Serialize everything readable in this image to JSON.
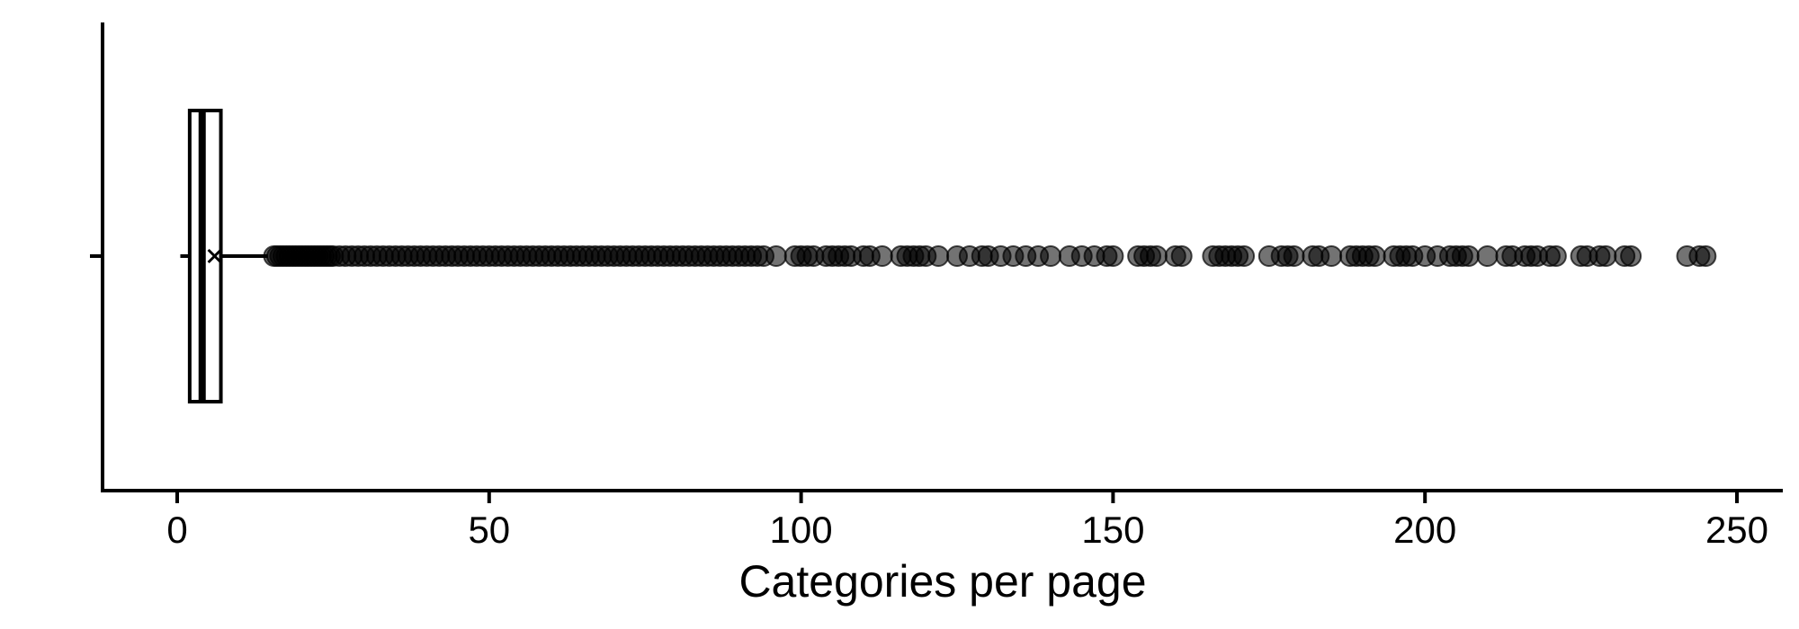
{
  "chart_data": {
    "type": "boxplot",
    "orientation": "horizontal",
    "xlabel": "Categories per page",
    "ylabel": "",
    "xlim": [
      -12,
      255
    ],
    "x_ticks": [
      0,
      50,
      100,
      150,
      200,
      250
    ],
    "x_tick_labels": [
      "0",
      "50",
      "100",
      "150",
      "200",
      "250"
    ],
    "grid": false,
    "box": {
      "whisker_low": 0.5,
      "q1": 2,
      "median": 4,
      "q3": 7,
      "whisker_high": 14.5,
      "mean": 6
    },
    "outliers": [
      15.5,
      16,
      16.5,
      17,
      17.5,
      18,
      18.5,
      19,
      19.5,
      20,
      20.5,
      21,
      21.5,
      22,
      22.5,
      23,
      23.5,
      24,
      24.5,
      25,
      26,
      27,
      28,
      29,
      30,
      31,
      32,
      33,
      34,
      35,
      36,
      37,
      38,
      39,
      40,
      41,
      42,
      43,
      44,
      45,
      46,
      47,
      48,
      49,
      50,
      51,
      52,
      53,
      54,
      55,
      56,
      57,
      58,
      59,
      60,
      61,
      62,
      63,
      64,
      65,
      66,
      67,
      68,
      69,
      70,
      71,
      72,
      73,
      74,
      75,
      76,
      77,
      78,
      79,
      80,
      81,
      82,
      83,
      84,
      85,
      86,
      87,
      88,
      89,
      90,
      91,
      92,
      93,
      94,
      96,
      99,
      100,
      101,
      102,
      104,
      105,
      106,
      107,
      108,
      110,
      111,
      113,
      116,
      117,
      118,
      119,
      120,
      122,
      125,
      127,
      129,
      130,
      132,
      134,
      136,
      138,
      140,
      143,
      145,
      147,
      149,
      150,
      154,
      155,
      156,
      157,
      160,
      161,
      166,
      167,
      168,
      169,
      170,
      171,
      175,
      177,
      178,
      179,
      182,
      183,
      185,
      188,
      189,
      190,
      191,
      192,
      195,
      196,
      197,
      198,
      200,
      202,
      204,
      205,
      206,
      207,
      210,
      213,
      214,
      216,
      217,
      218,
      220,
      221,
      225,
      226,
      228,
      229,
      232,
      233,
      242,
      244,
      245
    ]
  }
}
